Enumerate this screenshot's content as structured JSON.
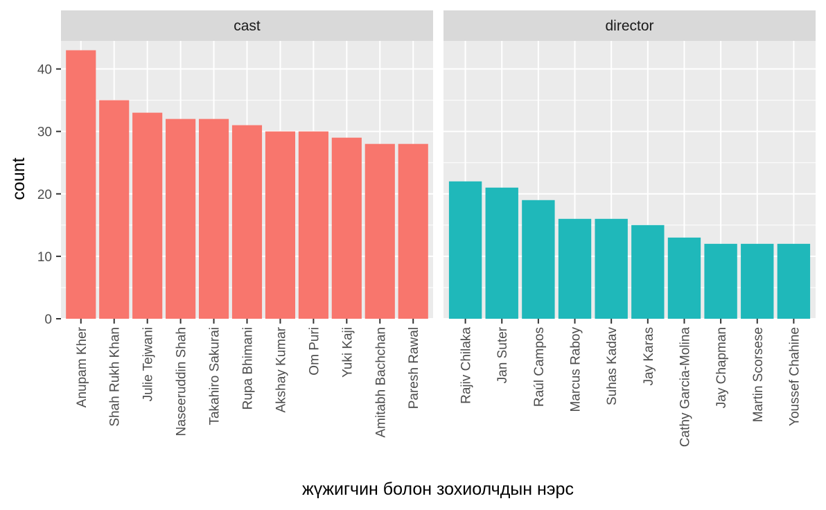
{
  "chart_data": {
    "type": "bar",
    "ylabel": "count",
    "xlabel": "жүжигчин болон зохиолчдын нэрс",
    "ylim": [
      0,
      44.5
    ],
    "y_ticks": [
      0,
      10,
      20,
      30,
      40
    ],
    "grid": true,
    "legend": "none",
    "panels": [
      {
        "name": "cast",
        "color": "#F8766D",
        "categories": [
          "Anupam Kher",
          "Shah Rukh Khan",
          "Julie Tejwani",
          "Naseeruddin Shah",
          "Takahiro Sakurai",
          "Rupa Bhimani",
          "Akshay Kumar",
          "Om Puri",
          "Yuki Kaji",
          "Amitabh Bachchan",
          "Paresh Rawal"
        ],
        "values": [
          43,
          35,
          33,
          32,
          32,
          31,
          30,
          30,
          29,
          28,
          28
        ]
      },
      {
        "name": "director",
        "color": "#1FB8BA",
        "categories": [
          "Rajiv Chilaka",
          "Jan Suter",
          "Raúl Campos",
          "Marcus Raboy",
          "Suhas Kadav",
          "Jay Karas",
          "Cathy Garcia-Molina",
          "Jay Chapman",
          "Martin Scorsese",
          "Youssef Chahine"
        ],
        "values": [
          22,
          21,
          19,
          16,
          16,
          15,
          13,
          12,
          12,
          12
        ]
      }
    ]
  },
  "colors": {
    "panel_bg": "#EBEBEB",
    "strip_bg": "#D9D9D9",
    "grid": "#FFFFFF"
  }
}
